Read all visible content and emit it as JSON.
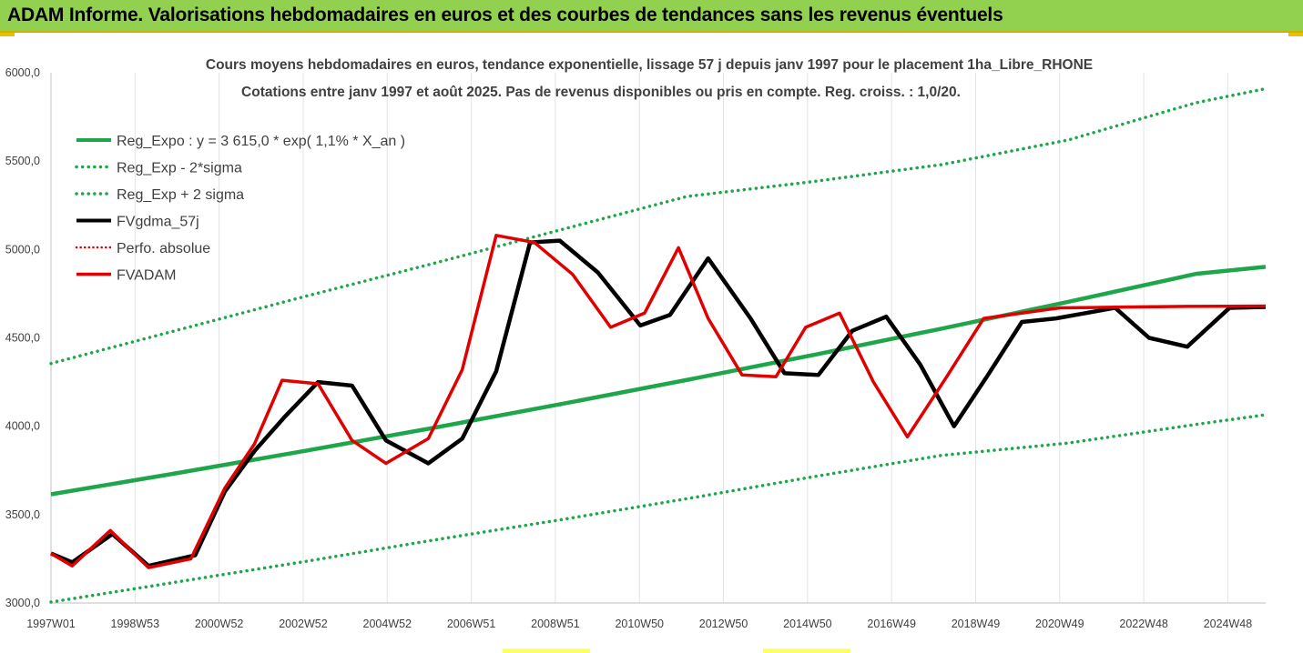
{
  "banner": {
    "title": "ADAM Informe. Valorisations hebdomadaires en euros et des courbes de tendances sans les revenus éventuels"
  },
  "colors": {
    "banner_bg": "#92d050",
    "trend": "#1fa64b",
    "band": "#1fa64b",
    "fvgdma": "#000000",
    "perfo": "#e00000",
    "fvadam": "#e00000"
  },
  "chart_data": {
    "type": "line",
    "title": "Cours moyens hebdomadaires en euros, tendance exponentielle, lissage 57 j depuis janv 1997 pour le placement 1ha_Libre_RHONE",
    "subtitle": "Cotations entre janv 1997 et août 2025.  Pas de revenus disponibles ou pris en compte. Reg. croiss. : 1,0/20.",
    "x_tick_labels": [
      "1997W01",
      "1998W53",
      "2000W52",
      "2002W52",
      "2004W52",
      "2006W51",
      "2008W51",
      "2010W50",
      "2012W50",
      "2014W50",
      "2016W49",
      "2018W49",
      "2020W49",
      "2022W48",
      "2024W48"
    ],
    "x_range": [
      1997.0,
      2025.65
    ],
    "y_tick_labels": [
      "3000,0",
      "3500,0",
      "4000,0",
      "4500,0",
      "5000,0",
      "5500,0",
      "6000,0"
    ],
    "y_ticks": [
      3000,
      3500,
      4000,
      4500,
      5000,
      5500,
      6000
    ],
    "ylim": [
      3000,
      6000
    ],
    "grid": "vertical",
    "legend": "top-left",
    "series": [
      {
        "name": "Reg_Expo : y = 3 615,0 * exp( 1,1% *  X_an )",
        "style": "solid-thick",
        "x": [
          1997.0,
          2000.0,
          2003.0,
          2006.0,
          2009.0,
          2012.0,
          2015.0,
          2018.0,
          2021.0,
          2024.0,
          2025.65
        ],
        "values": [
          3615,
          3736,
          3861,
          3990,
          4124,
          4262,
          4404,
          4552,
          4704,
          4862,
          4902
        ]
      },
      {
        "name": "Reg_Exp - 2*sigma",
        "style": "dotted",
        "x": [
          1997.0,
          2000.0,
          2003.0,
          2006.0,
          2009.0,
          2012.0,
          2015.0,
          2018.0,
          2021.0,
          2024.0,
          2025.65
        ],
        "values": [
          3005,
          3120,
          3235,
          3355,
          3470,
          3590,
          3715,
          3835,
          3905,
          4010,
          4065
        ]
      },
      {
        "name": "Reg_Exp + 2 sigma",
        "style": "dotted",
        "x": [
          1997.0,
          2000.0,
          2003.0,
          2006.0,
          2009.0,
          2012.0,
          2015.0,
          2018.0,
          2021.0,
          2024.0,
          2025.65
        ],
        "values": [
          4355,
          4545,
          4735,
          4920,
          5110,
          5300,
          5385,
          5480,
          5620,
          5830,
          5910
        ]
      },
      {
        "name": "FVgdma_57j",
        "style": "solid-black",
        "x": [
          1997.0,
          1997.5,
          1998.45,
          1999.3,
          2000.4,
          2001.1,
          2001.8,
          2002.5,
          2003.3,
          2004.1,
          2004.9,
          2005.9,
          2006.7,
          2007.5,
          2008.3,
          2009.0,
          2009.9,
          2010.9,
          2011.6,
          2012.5,
          2013.5,
          2014.3,
          2015.1,
          2015.9,
          2016.7,
          2017.5,
          2018.3,
          2019.1,
          2019.9,
          2020.7,
          2021.4,
          2022.1,
          2022.9,
          2023.8,
          2024.8,
          2025.65
        ],
        "values": [
          3280,
          3230,
          3390,
          3210,
          3270,
          3630,
          3860,
          4050,
          4250,
          4230,
          3920,
          3790,
          3930,
          4310,
          5040,
          5050,
          4870,
          4570,
          4630,
          4950,
          4610,
          4300,
          4290,
          4540,
          4620,
          4350,
          4000,
          4290,
          4590,
          4610,
          4640,
          4670,
          4500,
          4450,
          4670,
          4675
        ]
      },
      {
        "name": "Perfo. absolue",
        "style": "dotted-red",
        "x": [],
        "values": []
      },
      {
        "name": "FVADAM",
        "style": "solid-red-thick",
        "x": [
          1997.0,
          1997.5,
          1998.4,
          1999.3,
          2000.3,
          2001.1,
          2001.8,
          2002.45,
          2003.3,
          2004.1,
          2004.9,
          2005.9,
          2006.7,
          2007.5,
          2008.4,
          2009.3,
          2010.2,
          2011.0,
          2011.8,
          2012.5,
          2013.3,
          2014.1,
          2014.8,
          2015.6,
          2016.4,
          2017.2,
          2018.1,
          2019.0,
          2019.9,
          2020.8,
          2021.6,
          2022.3,
          2023.0,
          2023.8,
          2024.7,
          2025.65
        ],
        "values": [
          3280,
          3210,
          3410,
          3200,
          3250,
          3650,
          3900,
          4260,
          4240,
          3920,
          3790,
          3930,
          4320,
          5080,
          5040,
          4860,
          4560,
          4640,
          5010,
          4610,
          4290,
          4280,
          4560,
          4640,
          4250,
          3940,
          4270,
          4610,
          4640,
          4670,
          4672,
          4674,
          4676,
          4678,
          4679,
          4680
        ]
      }
    ]
  }
}
